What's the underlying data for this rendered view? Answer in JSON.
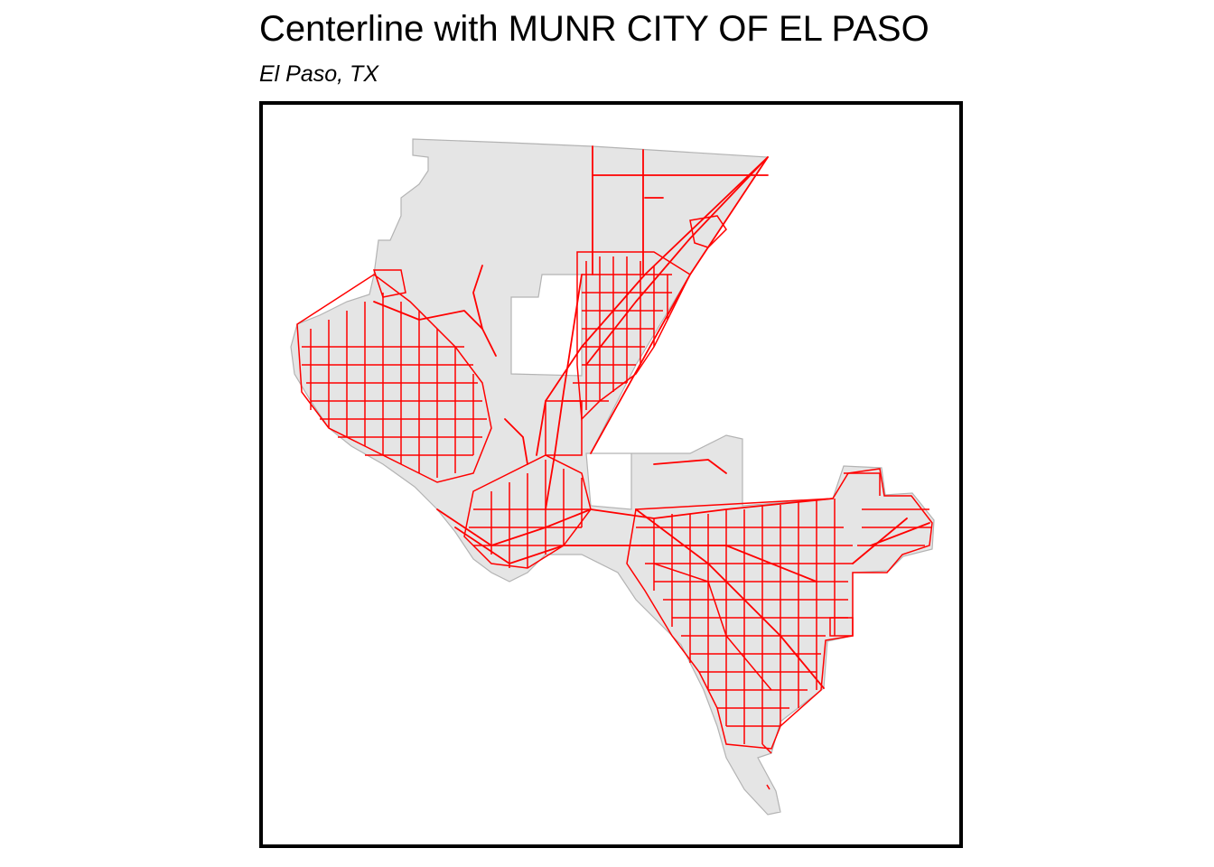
{
  "map": {
    "title": "Centerline with MUNR CITY OF EL PASO",
    "subtitle": "El Paso, TX",
    "colors": {
      "boundary_fill": "#e5e5e5",
      "boundary_stroke": "#b3b3b3",
      "centerline": "#ff0000",
      "frame": "#000000",
      "background": "#ffffff"
    }
  }
}
